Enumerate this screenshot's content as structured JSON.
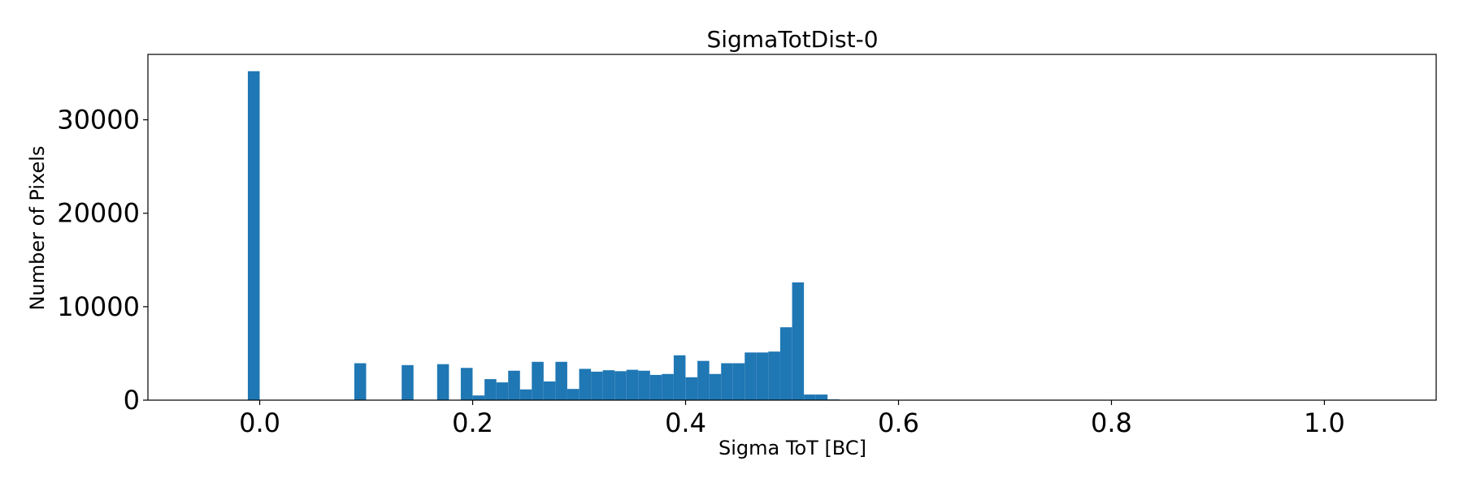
{
  "chart_data": {
    "type": "bar",
    "title": "SigmaTotDist-0",
    "xlabel": "Sigma ToT [BC]",
    "ylabel": "Number of Pixels",
    "xlim": [
      -0.105,
      1.105
    ],
    "ylim": [
      0,
      37000
    ],
    "grid": false,
    "legend": "none",
    "bar_color": "#1f77b4",
    "bin_width": 0.0111,
    "x_ticks": [
      0.0,
      0.2,
      0.4,
      0.6,
      0.8,
      1.0
    ],
    "x_tick_labels": [
      "0.0",
      "0.2",
      "0.4",
      "0.6",
      "0.8",
      "1.0"
    ],
    "y_ticks": [
      0,
      10000,
      20000,
      30000
    ],
    "y_tick_labels": [
      "0",
      "10000",
      "20000",
      "30000"
    ],
    "bins": [
      {
        "x": -0.0056,
        "value": 35200
      },
      {
        "x": 0.0944,
        "value": 3950
      },
      {
        "x": 0.1389,
        "value": 3750
      },
      {
        "x": 0.1722,
        "value": 3850
      },
      {
        "x": 0.1944,
        "value": 3450
      },
      {
        "x": 0.2056,
        "value": 500
      },
      {
        "x": 0.2167,
        "value": 2250
      },
      {
        "x": 0.2278,
        "value": 1900
      },
      {
        "x": 0.2389,
        "value": 3150
      },
      {
        "x": 0.25,
        "value": 1150
      },
      {
        "x": 0.2611,
        "value": 4100
      },
      {
        "x": 0.2722,
        "value": 2000
      },
      {
        "x": 0.2833,
        "value": 4100
      },
      {
        "x": 0.2944,
        "value": 1200
      },
      {
        "x": 0.3056,
        "value": 3350
      },
      {
        "x": 0.3167,
        "value": 3050
      },
      {
        "x": 0.3278,
        "value": 3200
      },
      {
        "x": 0.3389,
        "value": 3100
      },
      {
        "x": 0.35,
        "value": 3250
      },
      {
        "x": 0.3611,
        "value": 3150
      },
      {
        "x": 0.3722,
        "value": 2700
      },
      {
        "x": 0.3833,
        "value": 2800
      },
      {
        "x": 0.3944,
        "value": 4800
      },
      {
        "x": 0.4056,
        "value": 2450
      },
      {
        "x": 0.4167,
        "value": 4200
      },
      {
        "x": 0.4278,
        "value": 2800
      },
      {
        "x": 0.4389,
        "value": 3950
      },
      {
        "x": 0.45,
        "value": 3950
      },
      {
        "x": 0.4611,
        "value": 5100
      },
      {
        "x": 0.4722,
        "value": 5100
      },
      {
        "x": 0.4833,
        "value": 5200
      },
      {
        "x": 0.4944,
        "value": 7800
      },
      {
        "x": 0.5056,
        "value": 12600
      },
      {
        "x": 0.5167,
        "value": 600
      },
      {
        "x": 0.5278,
        "value": 600
      },
      {
        "x": 0.5389,
        "value": 80
      },
      {
        "x": 0.55,
        "value": 40
      },
      {
        "x": 0.5611,
        "value": 20
      }
    ]
  }
}
